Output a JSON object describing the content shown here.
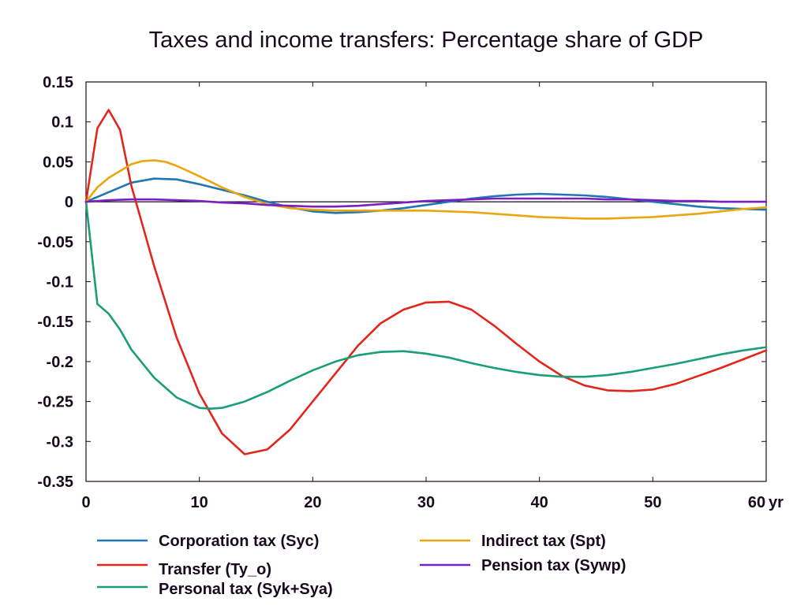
{
  "chart_data": {
    "type": "line",
    "title": "Taxes and income transfers: Percentage share of GDP",
    "xlabel": "",
    "ylabel": "",
    "x_unit_label": "yr",
    "xlim": [
      0,
      60
    ],
    "ylim": [
      -0.35,
      0.15
    ],
    "x_ticks": [
      0,
      10,
      20,
      30,
      40,
      50,
      60
    ],
    "x_tick_labels": [
      "0",
      "10",
      "20",
      "30",
      "40",
      "50",
      "60"
    ],
    "y_ticks": [
      0.15,
      0.1,
      0.05,
      0,
      -0.05,
      -0.1,
      -0.15,
      -0.2,
      -0.25,
      -0.3,
      -0.35
    ],
    "y_tick_labels": [
      "0.15",
      "0.1",
      "0.05",
      "0",
      "-0.05",
      "-0.1",
      "-0.15",
      "-0.2",
      "-0.25",
      "-0.3",
      "-0.35"
    ],
    "grid": false,
    "legend_position": "bottom",
    "series": [
      {
        "name": "Corporation tax (Syc)",
        "color": "#1f77b4",
        "x": [
          0,
          2,
          4,
          6,
          8,
          10,
          12,
          14,
          16,
          18,
          20,
          22,
          24,
          26,
          28,
          30,
          32,
          34,
          36,
          38,
          40,
          42,
          44,
          46,
          48,
          50,
          52,
          54,
          56,
          58,
          60
        ],
        "y": [
          0,
          0.012,
          0.024,
          0.029,
          0.028,
          0.022,
          0.015,
          0.008,
          0.0,
          -0.007,
          -0.012,
          -0.014,
          -0.013,
          -0.011,
          -0.008,
          -0.004,
          0.0,
          0.004,
          0.007,
          0.009,
          0.01,
          0.009,
          0.008,
          0.006,
          0.003,
          0.0,
          -0.003,
          -0.006,
          -0.008,
          -0.009,
          -0.01
        ]
      },
      {
        "name": "Transfer (Ty_o)",
        "color": "#e3261c",
        "x": [
          0,
          1,
          2,
          3,
          4,
          6,
          8,
          10,
          12,
          14,
          16,
          18,
          20,
          22,
          24,
          26,
          28,
          30,
          32,
          34,
          36,
          38,
          40,
          42,
          44,
          46,
          48,
          50,
          52,
          54,
          56,
          58,
          60
        ],
        "y": [
          0,
          0.092,
          0.115,
          0.09,
          0.02,
          -0.08,
          -0.17,
          -0.24,
          -0.29,
          -0.316,
          -0.31,
          -0.285,
          -0.25,
          -0.215,
          -0.18,
          -0.152,
          -0.135,
          -0.126,
          -0.125,
          -0.135,
          -0.155,
          -0.178,
          -0.2,
          -0.218,
          -0.23,
          -0.236,
          -0.237,
          -0.235,
          -0.228,
          -0.218,
          -0.208,
          -0.197,
          -0.186
        ]
      },
      {
        "name": "Personal tax (Syk+Sya)",
        "color": "#1a9e77",
        "x": [
          0,
          1,
          2,
          3,
          4,
          6,
          8,
          10,
          11,
          12,
          14,
          16,
          18,
          20,
          22,
          24,
          26,
          28,
          30,
          32,
          34,
          36,
          38,
          40,
          42,
          44,
          46,
          48,
          50,
          52,
          54,
          56,
          58,
          60
        ],
        "y": [
          0,
          -0.128,
          -0.14,
          -0.16,
          -0.185,
          -0.22,
          -0.245,
          -0.258,
          -0.259,
          -0.258,
          -0.25,
          -0.238,
          -0.224,
          -0.211,
          -0.2,
          -0.192,
          -0.188,
          -0.187,
          -0.19,
          -0.195,
          -0.202,
          -0.208,
          -0.213,
          -0.217,
          -0.219,
          -0.219,
          -0.217,
          -0.213,
          -0.208,
          -0.203,
          -0.197,
          -0.191,
          -0.186,
          -0.182
        ]
      },
      {
        "name": "Indirect tax (Spt)",
        "color": "#e8a70e",
        "x": [
          0,
          1,
          2,
          4,
          5,
          6,
          7,
          8,
          10,
          12,
          14,
          16,
          18,
          20,
          22,
          24,
          26,
          28,
          30,
          32,
          34,
          36,
          38,
          40,
          42,
          44,
          46,
          48,
          50,
          52,
          54,
          56,
          58,
          60
        ],
        "y": [
          0,
          0.018,
          0.03,
          0.047,
          0.051,
          0.052,
          0.05,
          0.045,
          0.032,
          0.018,
          0.006,
          -0.003,
          -0.008,
          -0.01,
          -0.011,
          -0.011,
          -0.011,
          -0.011,
          -0.011,
          -0.012,
          -0.013,
          -0.015,
          -0.017,
          -0.019,
          -0.02,
          -0.021,
          -0.021,
          -0.02,
          -0.019,
          -0.017,
          -0.015,
          -0.012,
          -0.009,
          -0.007
        ]
      },
      {
        "name": "Pension tax (Sywp)",
        "color": "#7b1fc2",
        "x": [
          0,
          2,
          4,
          6,
          8,
          10,
          12,
          14,
          16,
          18,
          20,
          22,
          24,
          26,
          28,
          30,
          32,
          34,
          36,
          38,
          40,
          42,
          44,
          46,
          48,
          50,
          52,
          54,
          56,
          58,
          60
        ],
        "y": [
          0,
          0.002,
          0.003,
          0.003,
          0.002,
          0.001,
          -0.001,
          -0.002,
          -0.004,
          -0.005,
          -0.006,
          -0.006,
          -0.005,
          -0.003,
          -0.001,
          0.001,
          0.002,
          0.003,
          0.004,
          0.004,
          0.004,
          0.004,
          0.004,
          0.003,
          0.003,
          0.002,
          0.001,
          0.001,
          0.0,
          0.0,
          0.0
        ]
      }
    ]
  }
}
